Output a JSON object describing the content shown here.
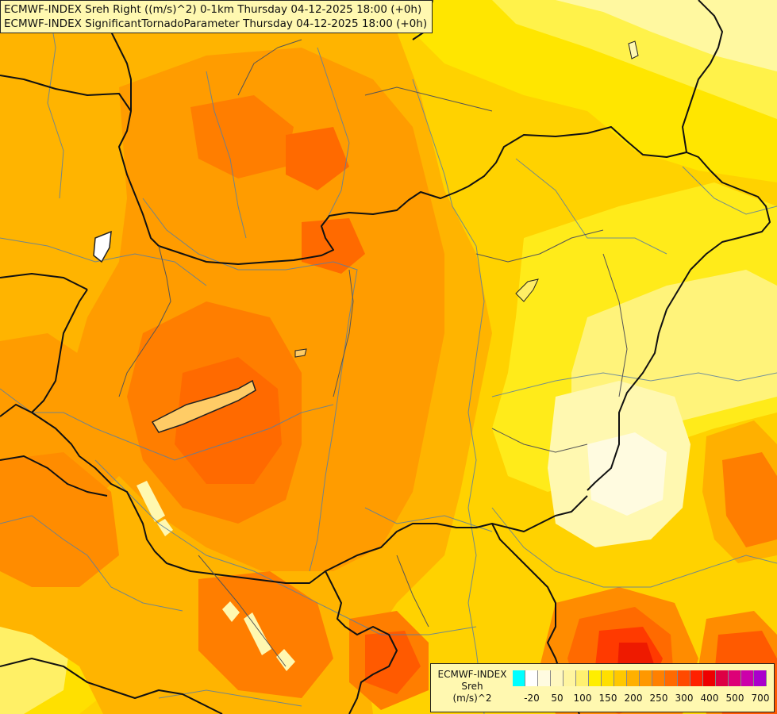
{
  "header": {
    "line1": "ECMWF-INDEX Sreh Right ((m/s)^2) 0-1km Thursday 04-12-2025 18:00 (+0h)",
    "line2": "ECMWF-INDEX SignificantTornadoParameter Thursday 04-12-2025 18:00 (+0h)"
  },
  "legend": {
    "title1": "ECMWF-INDEX",
    "title2": "Sreh",
    "title3": "(m/s)^2",
    "colors": [
      "#00ffff",
      "#ffffff",
      "#fffbe0",
      "#fff8c0",
      "#fff5a0",
      "#fff070",
      "#ffee00",
      "#ffdf00",
      "#ffc800",
      "#ffb000",
      "#ff9800",
      "#ff8000",
      "#ff6a00",
      "#ff4a00",
      "#ff2000",
      "#ee0000",
      "#dd0044",
      "#dd0077",
      "#cc00aa",
      "#aa00cc",
      "#8800dd",
      "#6600cc",
      "#3300aa",
      "#000088"
    ],
    "ticks": [
      {
        "label": "-20",
        "index": 1
      },
      {
        "label": "50",
        "index": 3
      },
      {
        "label": "100",
        "index": 5
      },
      {
        "label": "150",
        "index": 7
      },
      {
        "label": "200",
        "index": 9
      },
      {
        "label": "250",
        "index": 11
      },
      {
        "label": "300",
        "index": 13
      },
      {
        "label": "400",
        "index": 15
      },
      {
        "label": "500",
        "index": 17
      },
      {
        "label": "700",
        "index": 19
      }
    ]
  }
}
